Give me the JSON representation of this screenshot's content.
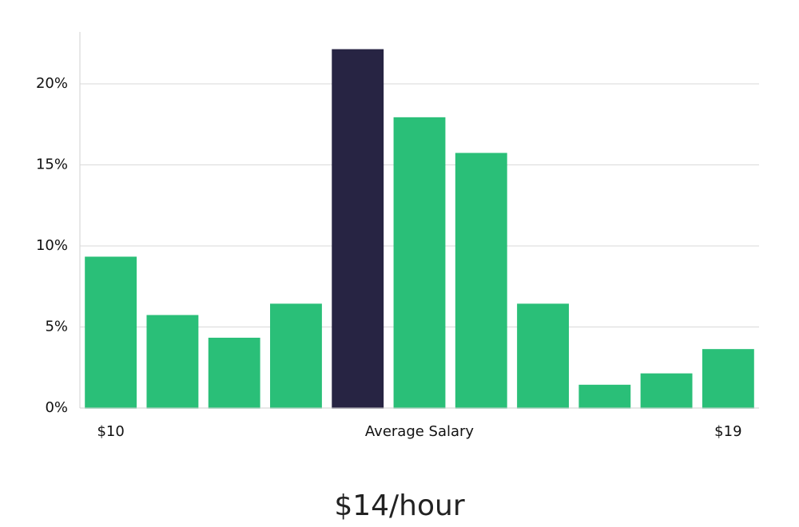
{
  "chart_data": {
    "type": "bar",
    "subtitle": "$14/hour",
    "categories": [
      "$10",
      null,
      null,
      null,
      null,
      "Average Salary",
      null,
      null,
      null,
      null,
      "$19"
    ],
    "values": [
      9.3,
      5.7,
      4.3,
      6.4,
      22.1,
      17.9,
      15.7,
      6.4,
      1.4,
      2.1,
      3.6
    ],
    "colors": [
      "#2abf78",
      "#2abf78",
      "#2abf78",
      "#2abf78",
      "#272443",
      "#2abf78",
      "#2abf78",
      "#2abf78",
      "#2abf78",
      "#2abf78",
      "#2abf78"
    ],
    "ylim": [
      0,
      23.2
    ],
    "yticks": [
      {
        "value": 0,
        "label": "0%"
      },
      {
        "value": 5,
        "label": "5%"
      },
      {
        "value": 10,
        "label": "10%"
      },
      {
        "value": 15,
        "label": "15%"
      },
      {
        "value": 20,
        "label": "20%"
      }
    ],
    "grid": true
  }
}
